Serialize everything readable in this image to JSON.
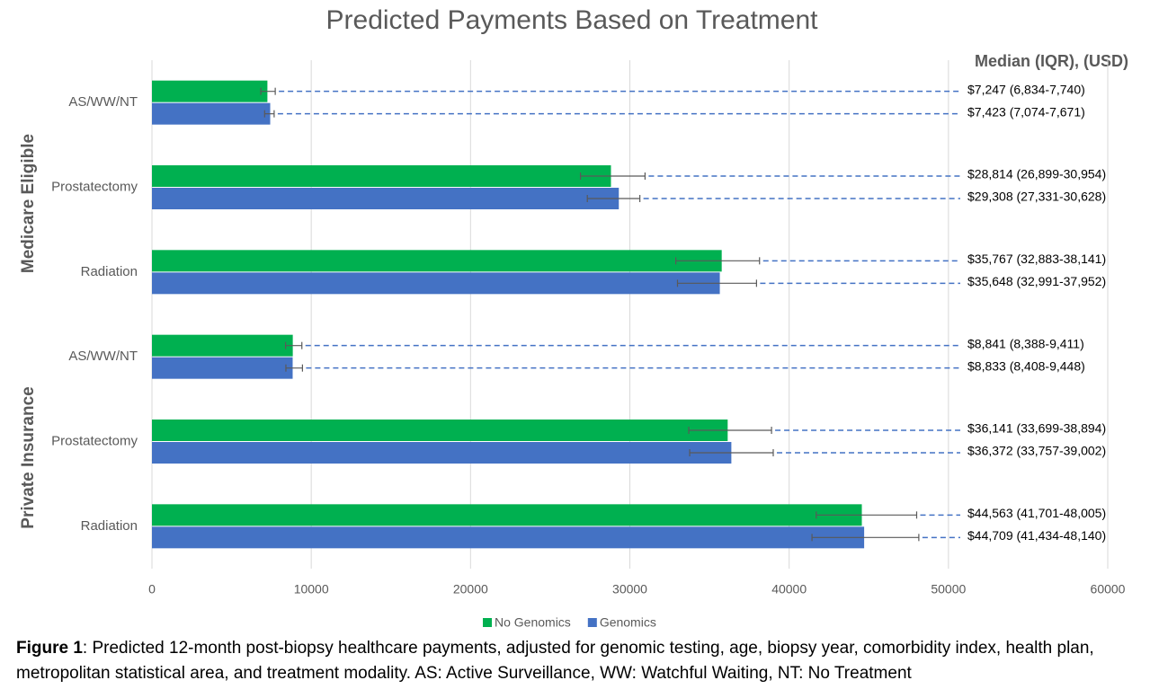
{
  "chart_data": {
    "type": "bar",
    "orientation": "horizontal",
    "title": "Predicted Payments Based on Treatment",
    "annotation": "Median (IQR), (USD)",
    "groups": [
      {
        "label": "Medicare Eligible",
        "categories": [
          "AS/WW/NT",
          "Prostatectomy",
          "Radiation"
        ]
      },
      {
        "label": "Private Insurance",
        "categories": [
          "AS/WW/NT",
          "Prostatectomy",
          "Radiation"
        ]
      }
    ],
    "series": [
      {
        "name": "No Genomics",
        "color": "#00b050",
        "values": [
          7247,
          28814,
          35767,
          8841,
          36141,
          44563
        ],
        "low": [
          6834,
          26899,
          32883,
          8388,
          33699,
          41701
        ],
        "high": [
          7740,
          30954,
          38141,
          9411,
          38894,
          48005
        ],
        "value_labels": [
          "$7,247 (6,834-7,740)",
          "$28,814 (26,899-30,954)",
          "$35,767 (32,883-38,141)",
          "$8,841 (8,388-9,411)",
          "$36,141 (33,699-38,894)",
          "$44,563 (41,701-48,005)"
        ]
      },
      {
        "name": "Genomics",
        "color": "#4472c4",
        "values": [
          7423,
          29308,
          35648,
          8833,
          36372,
          44709
        ],
        "low": [
          7074,
          27331,
          32991,
          8408,
          33757,
          41434
        ],
        "high": [
          7671,
          30628,
          37952,
          9448,
          39002,
          48140
        ],
        "value_labels": [
          "$7,423 (7,074-7,671)",
          "$29,308 (27,331-30,628)",
          "$35,648 (32,991-37,952)",
          "$8,833 (8,408-9,448)",
          "$36,372 (33,757-39,002)",
          "$44,709 (41,434-48,140)"
        ]
      }
    ],
    "xlim": [
      0,
      60000
    ],
    "xticks": [
      0,
      10000,
      20000,
      30000,
      40000,
      50000,
      60000
    ],
    "grid": true,
    "legend": "bottom",
    "caption_label": "Figure 1",
    "caption_text": ": Predicted 12-month post-biopsy healthcare payments, adjusted for genomic testing, age, biopsy year, comorbidity index, health plan, metropolitan statistical area, and treatment modality. AS: Active Surveillance, WW: Watchful Waiting, NT: No Treatment"
  }
}
